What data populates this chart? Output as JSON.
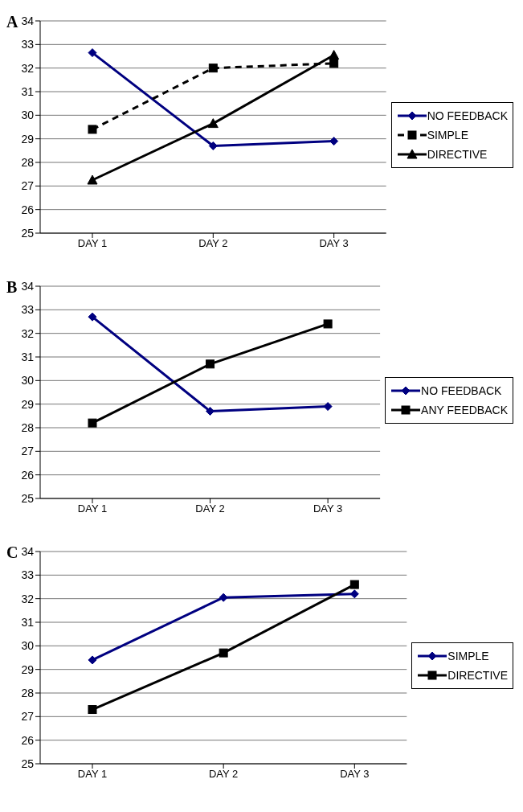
{
  "chart_data": [
    {
      "type": "line",
      "title": "A",
      "categories": [
        "DAY 1",
        "DAY 2",
        "DAY 3"
      ],
      "ylim": [
        25,
        34
      ],
      "yticks": [
        25,
        26,
        27,
        28,
        29,
        30,
        31,
        32,
        33,
        34
      ],
      "grid": "y",
      "legend": "right",
      "series": [
        {
          "name": "NO FEEDBACK",
          "color": "#000080",
          "marker": "diamond",
          "line_style": "solid",
          "values": [
            32.65,
            28.7,
            28.9
          ]
        },
        {
          "name": "SIMPLE",
          "color": "#000000",
          "marker": "square",
          "line_style": "dashed",
          "values": [
            29.4,
            32.0,
            32.2
          ]
        },
        {
          "name": "DIRECTIVE",
          "color": "#000000",
          "marker": "triangle",
          "line_style": "solid",
          "values": [
            27.25,
            29.65,
            32.55
          ]
        }
      ]
    },
    {
      "type": "line",
      "title": "B",
      "categories": [
        "DAY 1",
        "DAY 2",
        "DAY 3"
      ],
      "ylim": [
        25,
        34
      ],
      "yticks": [
        25,
        26,
        27,
        28,
        29,
        30,
        31,
        32,
        33,
        34
      ],
      "grid": "y",
      "legend": "right",
      "series": [
        {
          "name": "NO FEEDBACK",
          "color": "#000080",
          "marker": "diamond",
          "line_style": "solid",
          "values": [
            32.7,
            28.7,
            28.9
          ]
        },
        {
          "name": "ANY FEEDBACK",
          "color": "#000000",
          "marker": "square",
          "line_style": "solid",
          "values": [
            28.2,
            30.7,
            32.4
          ]
        }
      ]
    },
    {
      "type": "line",
      "title": "C",
      "categories": [
        "DAY 1",
        "DAY 2",
        "DAY 3"
      ],
      "ylim": [
        25,
        34
      ],
      "yticks": [
        25,
        26,
        27,
        28,
        29,
        30,
        31,
        32,
        33,
        34
      ],
      "grid": "y",
      "legend": "right",
      "series": [
        {
          "name": "SIMPLE",
          "color": "#000080",
          "marker": "diamond",
          "line_style": "solid",
          "values": [
            29.4,
            32.05,
            32.2
          ]
        },
        {
          "name": "DIRECTIVE",
          "color": "#000000",
          "marker": "square",
          "line_style": "solid",
          "values": [
            27.3,
            29.7,
            32.6
          ]
        }
      ]
    }
  ]
}
